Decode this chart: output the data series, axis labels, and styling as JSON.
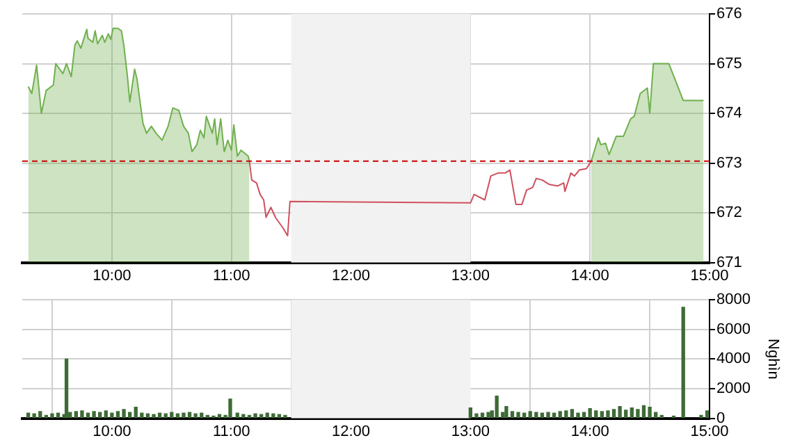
{
  "chart_data": [
    {
      "type": "area",
      "xlim": [
        9.25,
        15
      ],
      "xticks": [
        {
          "value": 10,
          "label": "10:00"
        },
        {
          "value": 11,
          "label": "11:00"
        },
        {
          "value": 12,
          "label": "12:00"
        },
        {
          "value": 13,
          "label": "13:00"
        },
        {
          "value": 14,
          "label": "14:00"
        },
        {
          "value": 15,
          "label": "15:00"
        }
      ],
      "ylim": [
        671,
        676
      ],
      "yticks": [
        671,
        672,
        673,
        674,
        675,
        676
      ],
      "grid": true,
      "legend": false,
      "series": [
        {
          "type": "area",
          "color": "#70b04e",
          "x": [
            9.3,
            9.33,
            9.37,
            9.41,
            9.45,
            9.51,
            9.53,
            9.59,
            9.62,
            9.66,
            9.69,
            9.71,
            9.74,
            9.79,
            9.8,
            9.84,
            9.86,
            9.88,
            9.92,
            9.94,
            9.97,
            9.99,
            10.01,
            10.05,
            10.08,
            10.1,
            10.13,
            10.15,
            10.19,
            10.21,
            10.26,
            10.29,
            10.33,
            10.37,
            10.42,
            10.47,
            10.51,
            10.56,
            10.6,
            10.64,
            10.67,
            10.71,
            10.74,
            10.77,
            10.79,
            10.84,
            10.86,
            10.88,
            10.91,
            10.94,
            10.97,
            11.0,
            11.02,
            11.05,
            11.08,
            11.14,
            11.15,
            12.5,
            14.01,
            14.07,
            14.09,
            14.13,
            14.16,
            14.22,
            14.28,
            14.34,
            14.37,
            14.42,
            14.48,
            14.5,
            14.53,
            14.66,
            14.78,
            14.95
          ],
          "values": [
            674.54,
            674.4,
            674.97,
            674.0,
            674.46,
            674.57,
            675.0,
            674.8,
            675.0,
            674.74,
            675.37,
            675.46,
            675.31,
            675.69,
            675.51,
            675.43,
            675.66,
            675.4,
            675.57,
            675.43,
            675.6,
            675.49,
            675.71,
            675.71,
            675.66,
            675.37,
            674.74,
            674.23,
            674.89,
            674.69,
            673.8,
            673.6,
            673.74,
            673.6,
            673.46,
            673.74,
            674.11,
            674.06,
            673.74,
            673.6,
            673.23,
            673.37,
            673.66,
            673.51,
            673.94,
            673.6,
            673.89,
            673.37,
            673.89,
            673.23,
            673.46,
            673.26,
            673.77,
            673.14,
            673.26,
            673.14,
            673.04,
            null,
            673.04,
            673.51,
            673.37,
            673.4,
            673.17,
            673.54,
            673.54,
            673.89,
            673.94,
            674.4,
            674.51,
            674.0,
            675.0,
            675.0,
            674.26,
            674.26
          ]
        },
        {
          "type": "line",
          "color": "#d0505e",
          "x": [
            11.15,
            11.17,
            11.21,
            11.24,
            11.27,
            11.29,
            11.33,
            11.37,
            11.43,
            11.47,
            11.49,
            13.0,
            13.03,
            13.12,
            13.17,
            13.23,
            13.29,
            13.33,
            13.38,
            13.43,
            13.47,
            13.52,
            13.55,
            13.6,
            13.66,
            13.73,
            13.78,
            13.79,
            13.84,
            13.87,
            13.91,
            13.97,
            14.01
          ],
          "values": [
            673.04,
            672.66,
            672.6,
            672.37,
            672.26,
            671.91,
            672.11,
            671.9,
            671.7,
            671.54,
            672.23,
            672.2,
            672.37,
            672.26,
            672.74,
            672.8,
            672.8,
            672.86,
            672.17,
            672.17,
            672.46,
            672.51,
            672.69,
            672.66,
            672.57,
            672.54,
            672.6,
            672.43,
            672.8,
            672.74,
            672.86,
            672.89,
            673.04
          ]
        }
      ],
      "ref_lines": [
        {
          "axis": "y",
          "value": 673.04,
          "color": "#cc0000",
          "line_style": "dashed"
        }
      ],
      "bands": [
        {
          "axis": "x",
          "from": 11.5,
          "to": 13,
          "color": "#f2f2f2"
        }
      ]
    },
    {
      "type": "bar",
      "color": "#3d6b35",
      "ylabel": "Nghìn",
      "xlim": [
        9.25,
        15
      ],
      "xticks": [
        {
          "value": 10,
          "label": "10:00"
        },
        {
          "value": 11,
          "label": "11:00"
        },
        {
          "value": 12,
          "label": "12:00"
        },
        {
          "value": 13,
          "label": "13:00"
        },
        {
          "value": 14,
          "label": "14:00"
        },
        {
          "value": 15,
          "label": "15:00"
        }
      ],
      "ylim": [
        0,
        8000
      ],
      "yticks": [
        0,
        2000,
        4000,
        6000,
        8000
      ],
      "grid": true,
      "legend": false,
      "x": [
        9.3,
        9.35,
        9.4,
        9.45,
        9.5,
        9.55,
        9.6,
        9.62,
        9.65,
        9.7,
        9.75,
        9.8,
        9.85,
        9.9,
        9.95,
        10.0,
        10.05,
        10.1,
        10.15,
        10.2,
        10.25,
        10.3,
        10.35,
        10.4,
        10.45,
        10.5,
        10.55,
        10.6,
        10.65,
        10.7,
        10.75,
        10.8,
        10.85,
        10.9,
        10.95,
        10.99,
        11.05,
        11.1,
        11.15,
        11.2,
        11.25,
        11.3,
        11.35,
        11.4,
        11.45,
        13.0,
        13.05,
        13.1,
        13.15,
        13.18,
        13.22,
        13.27,
        13.3,
        13.35,
        13.4,
        13.45,
        13.5,
        13.55,
        13.6,
        13.65,
        13.7,
        13.75,
        13.8,
        13.85,
        13.9,
        13.95,
        14.0,
        14.05,
        14.1,
        14.15,
        14.2,
        14.25,
        14.3,
        14.35,
        14.4,
        14.45,
        14.5,
        14.55,
        14.6,
        14.7,
        14.78,
        14.93,
        14.98
      ],
      "values": [
        350,
        300,
        450,
        200,
        300,
        350,
        250,
        4000,
        400,
        450,
        500,
        350,
        450,
        400,
        500,
        350,
        450,
        600,
        400,
        750,
        350,
        300,
        250,
        350,
        300,
        400,
        300,
        350,
        400,
        300,
        350,
        200,
        150,
        250,
        200,
        1300,
        350,
        250,
        200,
        300,
        250,
        350,
        300,
        250,
        200,
        700,
        300,
        350,
        400,
        500,
        1500,
        400,
        800,
        450,
        400,
        350,
        450,
        400,
        350,
        400,
        350,
        450,
        500,
        600,
        350,
        400,
        650,
        500,
        450,
        500,
        600,
        800,
        550,
        700,
        600,
        850,
        750,
        400,
        200,
        150,
        7500,
        200,
        500
      ],
      "bands": [
        {
          "axis": "x",
          "from": 11.5,
          "to": 13,
          "color": "#f2f2f2"
        }
      ]
    }
  ]
}
